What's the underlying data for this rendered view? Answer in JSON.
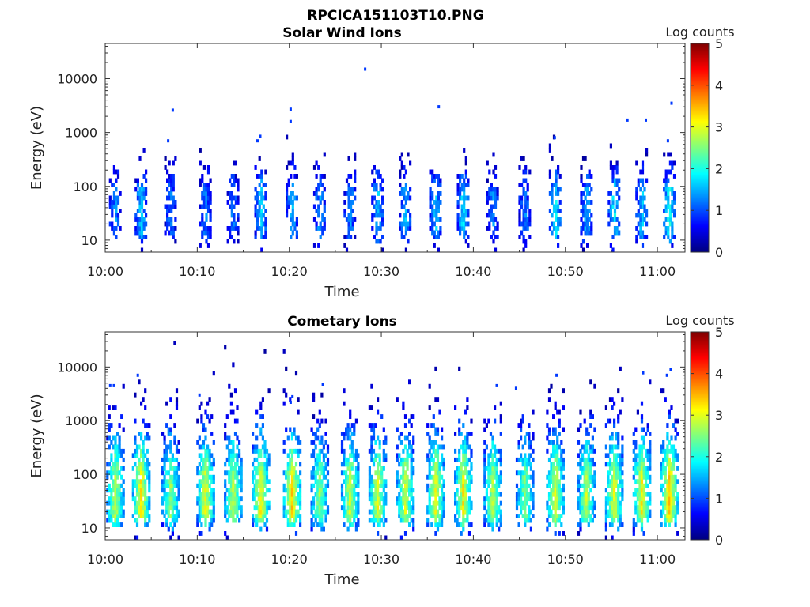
{
  "figure_title": "RPCICA151103T10.PNG",
  "chart_data": [
    {
      "type": "heatmap",
      "title": "Solar Wind Ions",
      "xlabel": "Time",
      "ylabel": "Energy (eV)",
      "x_ticks": [
        "10:00",
        "10:10",
        "10:20",
        "10:30",
        "10:40",
        "10:50",
        "11:00"
      ],
      "y_ticks": [
        "10",
        "100",
        "1000",
        "10000"
      ],
      "y_scale": "log",
      "ylim": [
        6,
        45000
      ],
      "xlim_minutes": [
        0,
        63
      ],
      "colorbar": {
        "label": "Log counts",
        "ticks": [
          "0",
          "1",
          "2",
          "3",
          "4",
          "5"
        ],
        "range": [
          0,
          5
        ],
        "colormap": "jet"
      },
      "burst_times_min": [
        1.0,
        3.8,
        7.0,
        10.8,
        13.8,
        16.8,
        20.2,
        23.2,
        26.5,
        29.5,
        32.5,
        35.8,
        38.8,
        42.0,
        45.5,
        48.8,
        52.2,
        55.2,
        58.2,
        61.2
      ],
      "burst_peak_log_counts": [
        1.3,
        1.6,
        1.2,
        1.3,
        1.2,
        1.7,
        1.5,
        1.4,
        1.3,
        1.6,
        1.5,
        1.6,
        1.7,
        1.3,
        1.2,
        1.8,
        1.5,
        1.8,
        1.6,
        2.0
      ],
      "core_energy_ev": [
        18,
        60
      ],
      "sparse_high_energy_points": [
        {
          "t": 6.8,
          "e": 700
        },
        {
          "t": 7.3,
          "e": 2600
        },
        {
          "t": 16.5,
          "e": 700
        },
        {
          "t": 16.8,
          "e": 850
        },
        {
          "t": 20.1,
          "e": 2700
        },
        {
          "t": 20.1,
          "e": 1600
        },
        {
          "t": 28.2,
          "e": 15000
        },
        {
          "t": 36.2,
          "e": 3000
        },
        {
          "t": 48.8,
          "e": 800
        },
        {
          "t": 56.7,
          "e": 1700
        },
        {
          "t": 58.7,
          "e": 1700
        },
        {
          "t": 61.5,
          "e": 3500
        },
        {
          "t": 61.1,
          "e": 700
        }
      ]
    },
    {
      "type": "heatmap",
      "title": "Cometary Ions",
      "xlabel": "Time",
      "ylabel": "Energy (eV)",
      "x_ticks": [
        "10:00",
        "10:10",
        "10:20",
        "10:30",
        "10:40",
        "10:50",
        "11:00"
      ],
      "y_ticks": [
        "10",
        "100",
        "1000",
        "10000"
      ],
      "y_scale": "log",
      "ylim": [
        6,
        45000
      ],
      "xlim_minutes": [
        0,
        63
      ],
      "colorbar": {
        "label": "Log counts",
        "ticks": [
          "0",
          "1",
          "2",
          "3",
          "4",
          "5"
        ],
        "range": [
          0,
          5
        ],
        "colormap": "jet"
      },
      "burst_times_min": [
        1.0,
        3.8,
        7.0,
        10.8,
        13.8,
        16.8,
        20.2,
        23.2,
        26.5,
        29.5,
        32.5,
        35.8,
        38.8,
        42.0,
        45.5,
        48.8,
        52.2,
        55.2,
        58.2,
        61.2
      ],
      "burst_peak_log_counts": [
        2.8,
        3.2,
        2.6,
        3.0,
        2.8,
        3.1,
        3.3,
        2.6,
        2.9,
        3.0,
        2.9,
        3.0,
        3.1,
        2.8,
        2.6,
        3.0,
        2.8,
        3.0,
        3.1,
        3.4
      ],
      "core_energy_ev": [
        20,
        50
      ],
      "sparse_high_energy_points": [
        {
          "t": 0.5,
          "e": 4500
        },
        {
          "t": 0.9,
          "e": 4500
        },
        {
          "t": 3.5,
          "e": 7000
        },
        {
          "t": 10.2,
          "e": 3000
        },
        {
          "t": 20.3,
          "e": 2800
        },
        {
          "t": 20.1,
          "e": 2200
        },
        {
          "t": 23.6,
          "e": 4800
        },
        {
          "t": 42.5,
          "e": 4500
        },
        {
          "t": 44.6,
          "e": 4000
        },
        {
          "t": 49.0,
          "e": 7000
        },
        {
          "t": 58.4,
          "e": 7800
        },
        {
          "t": 61.4,
          "e": 9000
        },
        {
          "t": 61.0,
          "e": 7000
        }
      ]
    }
  ]
}
